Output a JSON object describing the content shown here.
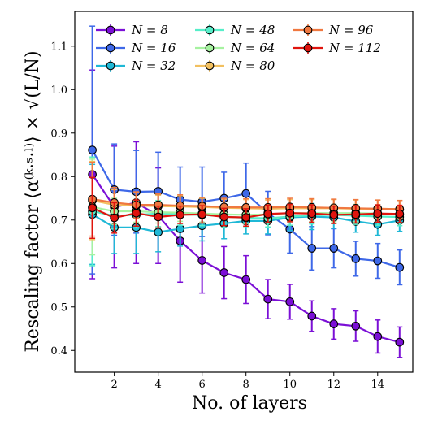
{
  "chart_data": {
    "type": "line",
    "title": "",
    "xlabel": "No. of layers",
    "ylabel": "Rescaling factor ⟨α⁽ᵏ·ˢ·ˡ⁾⟩ × √(L/N)",
    "xlim": [
      0.2,
      15.6
    ],
    "ylim": [
      0.35,
      1.18
    ],
    "xticks": [
      2,
      4,
      6,
      8,
      10,
      12,
      14
    ],
    "yticks": [
      0.4,
      0.5,
      0.6,
      0.7,
      0.8,
      0.9,
      1.0,
      1.1
    ],
    "grid": false,
    "legend_position": "top",
    "x": [
      1,
      2,
      3,
      4,
      5,
      6,
      7,
      8,
      9,
      10,
      11,
      12,
      13,
      14,
      15
    ],
    "series": [
      {
        "name": "N = 8",
        "color": "#7b0fd6",
        "values": [
          0.805,
          0.73,
          0.74,
          0.71,
          0.652,
          0.607,
          0.579,
          0.563,
          0.518,
          0.512,
          0.479,
          0.461,
          0.456,
          0.432,
          0.419
        ],
        "errors": [
          0.24,
          0.14,
          0.14,
          0.11,
          0.095,
          0.075,
          0.06,
          0.055,
          0.045,
          0.04,
          0.035,
          0.035,
          0.035,
          0.038,
          0.035
        ]
      },
      {
        "name": "N = 16",
        "color": "#3e68e8",
        "values": [
          0.861,
          0.77,
          0.765,
          0.766,
          0.747,
          0.742,
          0.75,
          0.761,
          0.716,
          0.679,
          0.635,
          0.635,
          0.611,
          0.606,
          0.591
        ],
        "errors": [
          0.285,
          0.105,
          0.095,
          0.09,
          0.075,
          0.08,
          0.06,
          0.07,
          0.05,
          0.055,
          0.05,
          0.045,
          0.04,
          0.04,
          0.04
        ]
      },
      {
        "name": "N = 32",
        "color": "#1fb8d6",
        "values": [
          0.713,
          0.683,
          0.683,
          0.672,
          0.68,
          0.687,
          0.692,
          0.698,
          0.698,
          0.706,
          0.708,
          0.706,
          0.697,
          0.69,
          0.699
        ],
        "errors": [
          0.115,
          0.06,
          0.06,
          0.045,
          0.04,
          0.035,
          0.035,
          0.03,
          0.03,
          0.03,
          0.03,
          0.025,
          0.025,
          0.025,
          0.025
        ]
      },
      {
        "name": "N = 48",
        "color": "#56eec9",
        "values": [
          0.72,
          0.71,
          0.712,
          0.715,
          0.713,
          0.712,
          0.708,
          0.705,
          0.704,
          0.708,
          0.711,
          0.712,
          0.71,
          0.708,
          0.707
        ],
        "errors": [
          0.125,
          0.03,
          0.03,
          0.03,
          0.025,
          0.025,
          0.025,
          0.02,
          0.02,
          0.02,
          0.02,
          0.02,
          0.02,
          0.02,
          0.02
        ]
      },
      {
        "name": "N = 64",
        "color": "#a6f2a0",
        "values": [
          0.73,
          0.72,
          0.72,
          0.718,
          0.717,
          0.715,
          0.713,
          0.712,
          0.713,
          0.716,
          0.716,
          0.716,
          0.716,
          0.715,
          0.713
        ],
        "errors": [
          0.11,
          0.03,
          0.025,
          0.025,
          0.02,
          0.02,
          0.02,
          0.02,
          0.02,
          0.02,
          0.02,
          0.02,
          0.02,
          0.02,
          0.02
        ]
      },
      {
        "name": "N = 80",
        "color": "#f2c060",
        "values": [
          0.745,
          0.735,
          0.733,
          0.732,
          0.731,
          0.73,
          0.728,
          0.727,
          0.726,
          0.727,
          0.727,
          0.727,
          0.726,
          0.726,
          0.725
        ],
        "errors": [
          0.09,
          0.035,
          0.03,
          0.025,
          0.025,
          0.02,
          0.02,
          0.02,
          0.02,
          0.02,
          0.02,
          0.02,
          0.02,
          0.02,
          0.02
        ]
      },
      {
        "name": "N = 96",
        "color": "#f07840",
        "values": [
          0.748,
          0.74,
          0.735,
          0.735,
          0.733,
          0.732,
          0.73,
          0.729,
          0.729,
          0.73,
          0.729,
          0.728,
          0.727,
          0.726,
          0.725
        ],
        "errors": [
          0.085,
          0.035,
          0.03,
          0.025,
          0.025,
          0.02,
          0.02,
          0.02,
          0.02,
          0.02,
          0.02,
          0.02,
          0.02,
          0.02,
          0.02
        ]
      },
      {
        "name": "N = 112",
        "color": "#e0140e",
        "values": [
          0.728,
          0.705,
          0.716,
          0.707,
          0.712,
          0.713,
          0.707,
          0.706,
          0.714,
          0.716,
          0.715,
          0.712,
          0.713,
          0.715,
          0.714
        ],
        "errors": [
          0.07,
          0.035,
          0.03,
          0.025,
          0.02,
          0.02,
          0.02,
          0.02,
          0.02,
          0.02,
          0.02,
          0.02,
          0.02,
          0.02,
          0.02
        ]
      }
    ]
  }
}
